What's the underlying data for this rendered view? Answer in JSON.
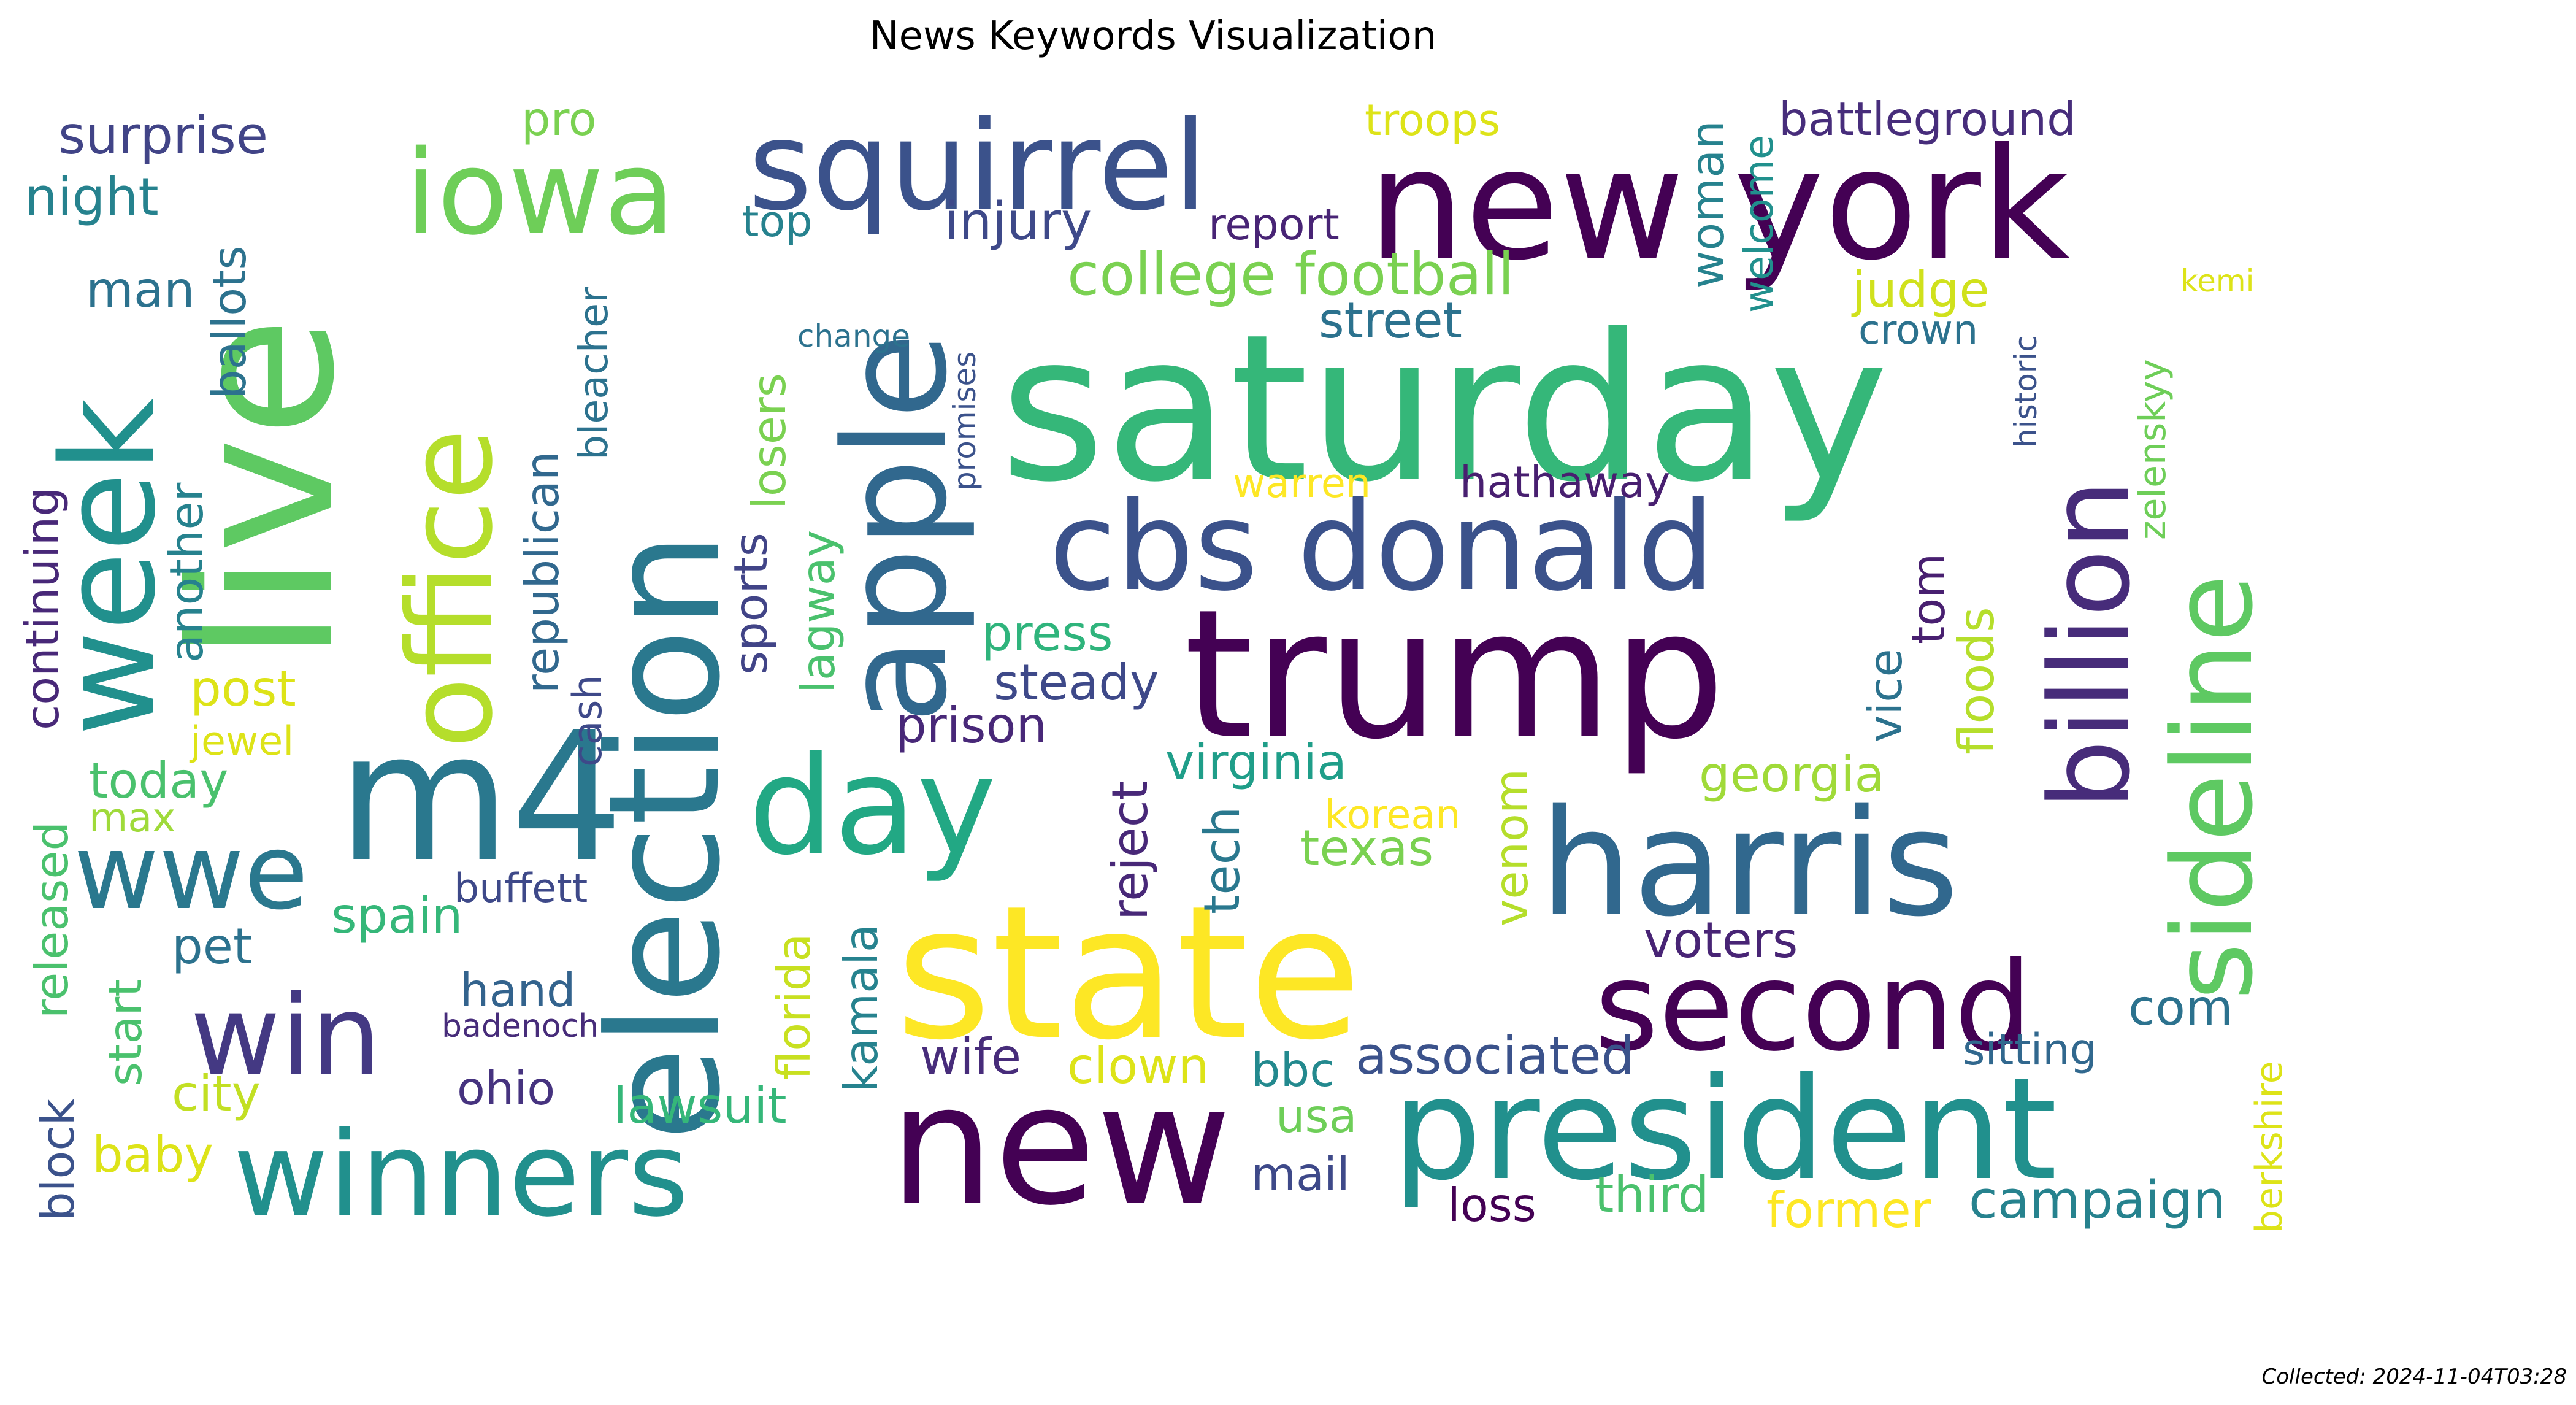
{
  "chart_data": {
    "type": "wordcloud",
    "title": "News Keywords Visualization",
    "footer": "Collected: 2024-11-04T03:28",
    "words": [
      {
        "text": "saturday",
        "color": "#35b779"
      },
      {
        "text": "trump",
        "color": "#440154"
      },
      {
        "text": "state",
        "color": "#fde725"
      },
      {
        "text": "new york",
        "color": "#440154"
      },
      {
        "text": "new",
        "color": "#440154"
      },
      {
        "text": "president",
        "color": "#21908d"
      },
      {
        "text": "election",
        "color": "#2a788e"
      },
      {
        "text": "live",
        "color": "#5ec962"
      },
      {
        "text": "harris",
        "color": "#31688e"
      },
      {
        "text": "m4",
        "color": "#2a788e"
      },
      {
        "text": "apple",
        "color": "#31688e"
      },
      {
        "text": "cbs donald",
        "color": "#3b528b"
      },
      {
        "text": "squirrel",
        "color": "#3b528b"
      },
      {
        "text": "second",
        "color": "#440154"
      },
      {
        "text": "sideline",
        "color": "#5ec962"
      },
      {
        "text": "billion",
        "color": "#472c7a"
      },
      {
        "text": "winners",
        "color": "#21908d"
      },
      {
        "text": "week",
        "color": "#21908d"
      },
      {
        "text": "iowa",
        "color": "#6ece58"
      },
      {
        "text": "office",
        "color": "#b5de2b"
      },
      {
        "text": "day",
        "color": "#22a884"
      },
      {
        "text": "win",
        "color": "#443983"
      },
      {
        "text": "wwe",
        "color": "#2a788e"
      },
      {
        "text": "college football",
        "color": "#7ad151"
      },
      {
        "text": "injury",
        "color": "#3e4989"
      },
      {
        "text": "surprise",
        "color": "#414487"
      },
      {
        "text": "battleground",
        "color": "#472d7b"
      },
      {
        "text": "associated",
        "color": "#3b528b"
      },
      {
        "text": "campaign",
        "color": "#26828e"
      },
      {
        "text": "voters",
        "color": "#482475"
      },
      {
        "text": "virginia",
        "color": "#1f9e89"
      },
      {
        "text": "georgia",
        "color": "#a0da39"
      },
      {
        "text": "street",
        "color": "#2c728e"
      },
      {
        "text": "judge",
        "color": "#d0e11c"
      },
      {
        "text": "crown",
        "color": "#2c728e"
      },
      {
        "text": "hathaway",
        "color": "#481f70"
      },
      {
        "text": "warren",
        "color": "#fde725"
      },
      {
        "text": "press",
        "color": "#2fb47c"
      },
      {
        "text": "steady",
        "color": "#3e4989"
      },
      {
        "text": "prison",
        "color": "#482878"
      },
      {
        "text": "texas",
        "color": "#7ad151"
      },
      {
        "text": "korean",
        "color": "#fde725"
      },
      {
        "text": "buffett",
        "color": "#3e4989"
      },
      {
        "text": "spain",
        "color": "#35b779"
      },
      {
        "text": "hand",
        "color": "#33638d"
      },
      {
        "text": "ohio",
        "color": "#46337f"
      },
      {
        "text": "wife",
        "color": "#472c7a"
      },
      {
        "text": "clown",
        "color": "#dde318"
      },
      {
        "text": "bbc",
        "color": "#23898e"
      },
      {
        "text": "usa",
        "color": "#6ece58"
      },
      {
        "text": "mail",
        "color": "#3e4989"
      },
      {
        "text": "loss",
        "color": "#440154"
      },
      {
        "text": "third",
        "color": "#4ac16d"
      },
      {
        "text": "former",
        "color": "#fde725"
      },
      {
        "text": "sitting",
        "color": "#31688e"
      },
      {
        "text": "com",
        "color": "#2c728e"
      },
      {
        "text": "lawsuit",
        "color": "#35b779"
      },
      {
        "text": "city",
        "color": "#c2df23"
      },
      {
        "text": "baby",
        "color": "#dde318"
      },
      {
        "text": "pet",
        "color": "#2c728e"
      },
      {
        "text": "today",
        "color": "#4ac16d"
      },
      {
        "text": "max",
        "color": "#9fda3a"
      },
      {
        "text": "post",
        "color": "#dde318"
      },
      {
        "text": "jewel",
        "color": "#dde318"
      },
      {
        "text": "night",
        "color": "#26828e"
      },
      {
        "text": "man",
        "color": "#2c728e"
      },
      {
        "text": "pro",
        "color": "#7ad151"
      },
      {
        "text": "top",
        "color": "#26828e"
      },
      {
        "text": "change",
        "color": "#2c728e"
      },
      {
        "text": "report",
        "color": "#482475"
      },
      {
        "text": "troops",
        "color": "#dde318"
      },
      {
        "text": "kemi",
        "color": "#dde318"
      },
      {
        "text": "badenoch",
        "color": "#472c7a"
      },
      {
        "text": "woman",
        "color": "#26828e"
      },
      {
        "text": "welcome",
        "color": "#21908d"
      },
      {
        "text": "historic",
        "color": "#3b528b"
      },
      {
        "text": "zelenskyy",
        "color": "#6ece58"
      },
      {
        "text": "berkshire",
        "color": "#dde318"
      },
      {
        "text": "floods",
        "color": "#b5de2b"
      },
      {
        "text": "tom",
        "color": "#481f70"
      },
      {
        "text": "vice",
        "color": "#2c728e"
      },
      {
        "text": "venom",
        "color": "#b5de2b"
      },
      {
        "text": "tech",
        "color": "#2a788e"
      },
      {
        "text": "reject",
        "color": "#482878"
      },
      {
        "text": "kamala",
        "color": "#26828e"
      },
      {
        "text": "florida",
        "color": "#c8e020"
      },
      {
        "text": "lagway",
        "color": "#4ac16d"
      },
      {
        "text": "sports",
        "color": "#414487"
      },
      {
        "text": "losers",
        "color": "#7ad151"
      },
      {
        "text": "promises",
        "color": "#3b528b"
      },
      {
        "text": "republican",
        "color": "#31688e"
      },
      {
        "text": "bleacher",
        "color": "#2c728e"
      },
      {
        "text": "cash",
        "color": "#3e4989"
      },
      {
        "text": "ballots",
        "color": "#2c728e"
      },
      {
        "text": "another",
        "color": "#26828e"
      },
      {
        "text": "continuing",
        "color": "#482878"
      },
      {
        "text": "released",
        "color": "#4ac16d"
      },
      {
        "text": "start",
        "color": "#4ac16d"
      },
      {
        "text": "block",
        "color": "#3b528b"
      }
    ]
  }
}
